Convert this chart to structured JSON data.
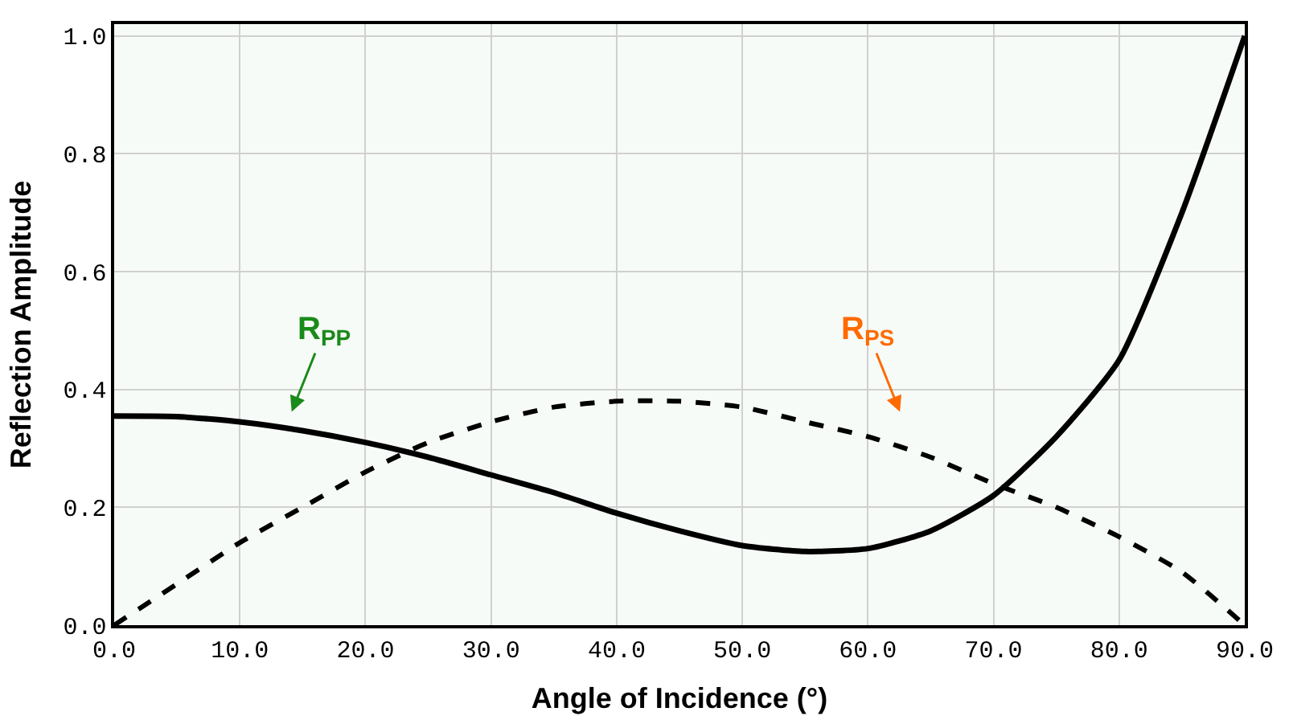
{
  "chart_data": {
    "type": "line",
    "xlabel": "Angle of Incidence (°)",
    "ylabel": "Reflection Amplitude",
    "x": [
      0,
      5,
      10,
      15,
      20,
      25,
      30,
      35,
      40,
      45,
      50,
      55,
      60,
      65,
      70,
      75,
      80,
      85,
      90
    ],
    "series": [
      {
        "color": "#000000",
        "line_style": "solid",
        "values": [
          0.355,
          0.354,
          0.345,
          0.33,
          0.31,
          0.285,
          0.255,
          0.225,
          0.19,
          0.16,
          0.135,
          0.125,
          0.13,
          0.16,
          0.22,
          0.32,
          0.45,
          0.7,
          1.0
        ]
      },
      {
        "color": "#000000",
        "line_style": "dashed",
        "values": [
          0.0,
          0.07,
          0.14,
          0.2,
          0.26,
          0.31,
          0.345,
          0.37,
          0.38,
          0.38,
          0.37,
          0.345,
          0.32,
          0.285,
          0.24,
          0.2,
          0.15,
          0.09,
          0.0
        ]
      }
    ],
    "annotations": [
      "R$_{PP}$",
      "R$_{PS}$"
    ],
    "xlim": [
      0,
      90
    ],
    "xticks": [
      {
        "value": 0,
        "label": "0.0"
      },
      {
        "value": 10,
        "label": "10.0"
      },
      {
        "value": 20,
        "label": "20.0"
      },
      {
        "value": 30,
        "label": "30.0"
      },
      {
        "value": 40,
        "label": "40.0"
      },
      {
        "value": 50,
        "label": "50.0"
      },
      {
        "value": 60,
        "label": "60.0"
      },
      {
        "value": 70,
        "label": "70.0"
      },
      {
        "value": 80,
        "label": "80.0"
      },
      {
        "value": 90,
        "label": "90.0"
      }
    ],
    "ylim": [
      0,
      1.02
    ],
    "yticks": [
      {
        "value": 0,
        "label": "0.0"
      },
      {
        "value": 0.2,
        "label": "0.2"
      },
      {
        "value": 0.4,
        "label": "0.4"
      },
      {
        "value": 0.6,
        "label": "0.6"
      },
      {
        "value": 0.8,
        "label": "0.8"
      },
      {
        "value": 1.0,
        "label": "1.0"
      }
    ],
    "grid": true
  }
}
